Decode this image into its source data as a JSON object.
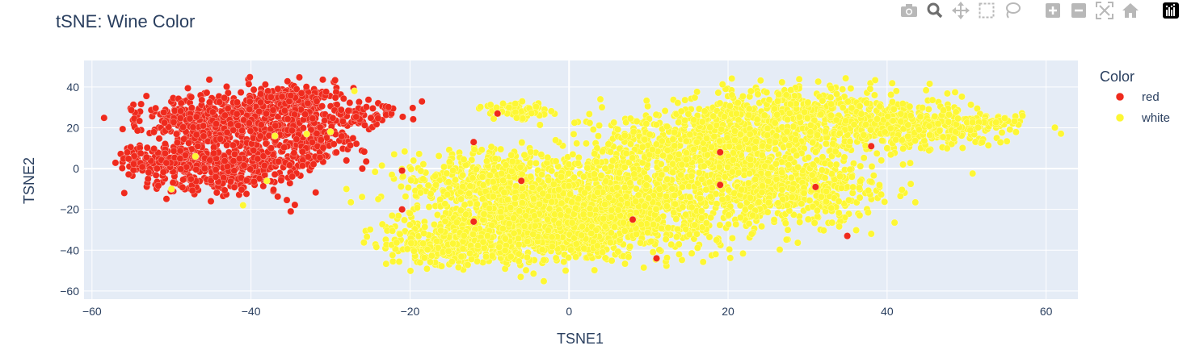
{
  "chart_data": {
    "type": "scatter",
    "title": "tSNE: Wine Color",
    "xlabel": "TSNE1",
    "ylabel": "TSNE2",
    "xlim": [
      -61,
      64
    ],
    "ylim": [
      -64,
      53
    ],
    "xticks": [
      -60,
      -40,
      -20,
      0,
      20,
      40,
      60
    ],
    "yticks": [
      -60,
      -40,
      -20,
      0,
      20,
      40
    ],
    "grid": true,
    "legend_title": "Color",
    "legend_position": "right",
    "series": [
      {
        "name": "red",
        "color": "#ef2a1d",
        "clusters": [
          {
            "cx": -44,
            "cy": 24,
            "sx": 6,
            "sy": 6,
            "n": 420
          },
          {
            "cx": -36,
            "cy": 33,
            "sx": 4,
            "sy": 5,
            "n": 260
          },
          {
            "cx": -44,
            "cy": 2,
            "sx": 6,
            "sy": 8,
            "n": 520
          },
          {
            "cx": -33,
            "cy": 14,
            "sx": 4,
            "sy": 7,
            "n": 180
          },
          {
            "cx": -26,
            "cy": 27,
            "sx": 4,
            "sy": 4,
            "n": 60
          },
          {
            "cx": -52,
            "cy": 4,
            "sx": 2.5,
            "sy": 4,
            "n": 60
          }
        ],
        "outliers": [
          [
            -35,
            -21
          ],
          [
            -21,
            -1
          ],
          [
            -28,
            4
          ],
          [
            -26,
            0
          ],
          [
            -9,
            27
          ],
          [
            -12,
            13
          ],
          [
            -6,
            -6
          ],
          [
            19,
            8
          ],
          [
            19,
            -8
          ],
          [
            31,
            -9
          ],
          [
            38,
            11
          ],
          [
            35,
            -33
          ],
          [
            8,
            -25
          ],
          [
            11,
            -44
          ],
          [
            -21,
            -20
          ],
          [
            -12,
            -26
          ]
        ]
      },
      {
        "name": "white",
        "color": "#fdf734",
        "clusters": [
          {
            "cx": -2,
            "cy": -25,
            "sx": 9,
            "sy": 11,
            "n": 1300
          },
          {
            "cx": -10,
            "cy": -5,
            "sx": 6,
            "sy": 9,
            "n": 350
          },
          {
            "cx": 8,
            "cy": -15,
            "sx": 8,
            "sy": 14,
            "n": 700
          },
          {
            "cx": 18,
            "cy": 10,
            "sx": 8,
            "sy": 10,
            "n": 700
          },
          {
            "cx": 30,
            "cy": 25,
            "sx": 9,
            "sy": 9,
            "n": 600
          },
          {
            "cx": 28,
            "cy": -10,
            "sx": 7,
            "sy": 11,
            "n": 500
          },
          {
            "cx": 45,
            "cy": 20,
            "sx": 6,
            "sy": 6,
            "n": 260
          },
          {
            "cx": -6,
            "cy": 28,
            "sx": 2.5,
            "sy": 2.5,
            "n": 70
          },
          {
            "cx": 53,
            "cy": 23,
            "sx": 3,
            "sy": 1.5,
            "n": 40
          },
          {
            "cx": -14,
            "cy": -38,
            "sx": 6,
            "sy": 6,
            "n": 250
          }
        ],
        "outliers": [
          [
            -30,
            18
          ],
          [
            -33,
            17
          ],
          [
            -38,
            -6
          ],
          [
            -41,
            -18
          ],
          [
            -47,
            6
          ],
          [
            -50,
            -10
          ],
          [
            -28,
            -10
          ],
          [
            -27,
            38
          ],
          [
            -22,
            7
          ],
          [
            -20,
            -22
          ],
          [
            -24,
            -15
          ],
          [
            -37,
            16
          ],
          [
            42,
            2
          ],
          [
            38,
            -32
          ],
          [
            40,
            10
          ]
        ]
      }
    ]
  },
  "modebar": {
    "buttons": [
      {
        "name": "camera-icon",
        "label": "Download plot as a png"
      },
      {
        "name": "zoom-icon",
        "label": "Zoom"
      },
      {
        "name": "pan-icon",
        "label": "Pan"
      },
      {
        "name": "box-select-icon",
        "label": "Box Select"
      },
      {
        "name": "lasso-select-icon",
        "label": "Lasso Select"
      },
      {
        "name": "zoom-in-icon",
        "label": "Zoom in"
      },
      {
        "name": "zoom-out-icon",
        "label": "Zoom out"
      },
      {
        "name": "autoscale-icon",
        "label": "Autoscale"
      },
      {
        "name": "reset-axes-icon",
        "label": "Reset axes"
      },
      {
        "name": "plotly-logo-icon",
        "label": "Produced with Plotly"
      }
    ]
  }
}
